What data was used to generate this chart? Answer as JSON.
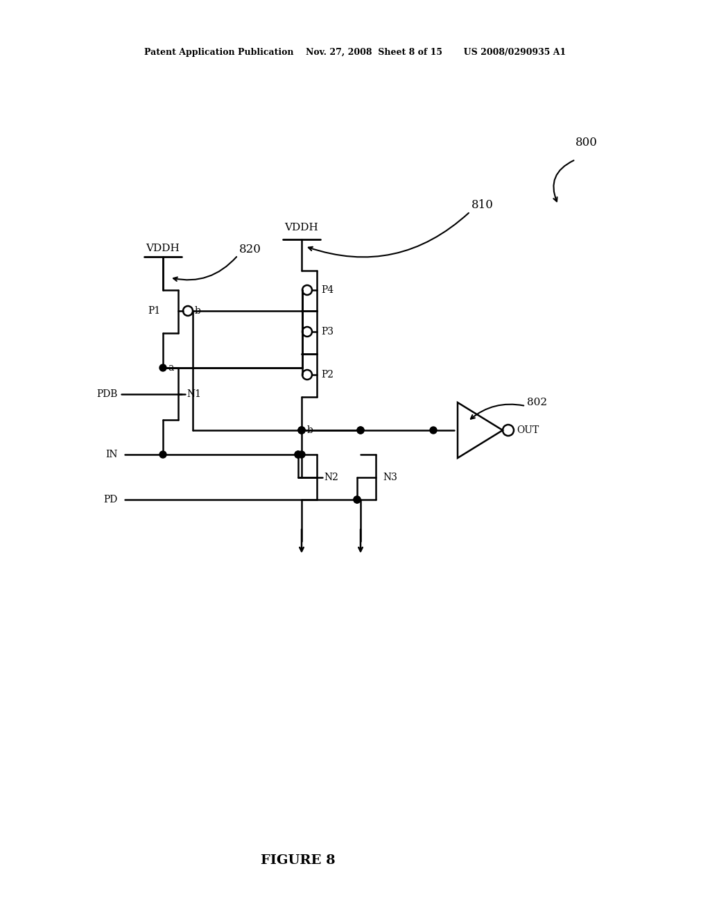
{
  "bg_color": "#ffffff",
  "header_text": "Patent Application Publication    Nov. 27, 2008  Sheet 8 of 15       US 2008/0290935 A1",
  "figure_label": "FIGURE 8",
  "label_800": "800",
  "label_810": "810",
  "label_820": "820",
  "label_802": "802"
}
